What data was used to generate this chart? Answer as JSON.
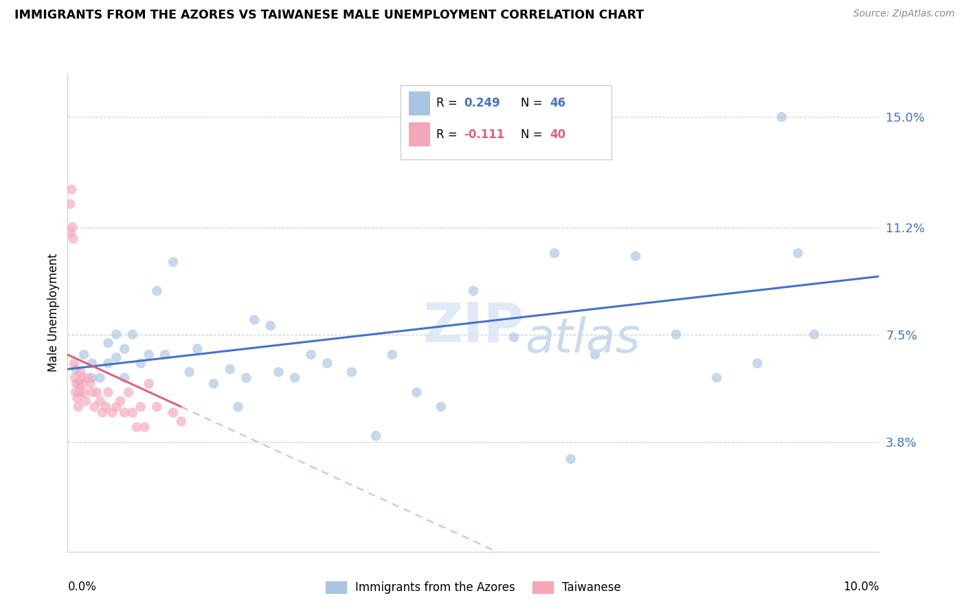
{
  "title": "IMMIGRANTS FROM THE AZORES VS TAIWANESE MALE UNEMPLOYMENT CORRELATION CHART",
  "source": "Source: ZipAtlas.com",
  "ylabel": "Male Unemployment",
  "y_ticks": [
    0.0,
    0.038,
    0.075,
    0.112,
    0.15
  ],
  "y_tick_labels": [
    "",
    "3.8%",
    "7.5%",
    "11.2%",
    "15.0%"
  ],
  "x_range": [
    0.0,
    0.1
  ],
  "y_range": [
    0.0,
    0.165
  ],
  "color_azores": "#a8c4e0",
  "color_taiwanese": "#f4a7b9",
  "color_azores_line": "#4472c4",
  "color_taiwanese_line": "#e06080",
  "color_taiwanese_line_dashed": "#f0b0c8",
  "azores_x": [
    0.001,
    0.002,
    0.003,
    0.003,
    0.004,
    0.005,
    0.005,
    0.006,
    0.006,
    0.007,
    0.007,
    0.008,
    0.009,
    0.01,
    0.011,
    0.012,
    0.013,
    0.015,
    0.016,
    0.018,
    0.02,
    0.021,
    0.022,
    0.023,
    0.025,
    0.026,
    0.028,
    0.03,
    0.032,
    0.035,
    0.038,
    0.04,
    0.043,
    0.046,
    0.05,
    0.055,
    0.06,
    0.062,
    0.065,
    0.07,
    0.075,
    0.08,
    0.085,
    0.088,
    0.09,
    0.092
  ],
  "azores_y": [
    0.063,
    0.068,
    0.06,
    0.065,
    0.06,
    0.072,
    0.065,
    0.067,
    0.075,
    0.07,
    0.06,
    0.075,
    0.065,
    0.068,
    0.09,
    0.068,
    0.1,
    0.062,
    0.07,
    0.058,
    0.063,
    0.05,
    0.06,
    0.08,
    0.078,
    0.062,
    0.06,
    0.068,
    0.065,
    0.062,
    0.04,
    0.068,
    0.055,
    0.05,
    0.09,
    0.074,
    0.103,
    0.032,
    0.068,
    0.102,
    0.075,
    0.06,
    0.065,
    0.15,
    0.103,
    0.075
  ],
  "taiwanese_x": [
    0.0003,
    0.0004,
    0.0005,
    0.0006,
    0.0007,
    0.0008,
    0.0009,
    0.001,
    0.0011,
    0.0012,
    0.0013,
    0.0014,
    0.0015,
    0.0016,
    0.0017,
    0.0018,
    0.002,
    0.0022,
    0.0025,
    0.0028,
    0.003,
    0.0033,
    0.0036,
    0.004,
    0.0043,
    0.0047,
    0.005,
    0.0055,
    0.006,
    0.0065,
    0.007,
    0.0075,
    0.008,
    0.0085,
    0.009,
    0.0095,
    0.01,
    0.011,
    0.013,
    0.014
  ],
  "taiwanese_y": [
    0.12,
    0.11,
    0.125,
    0.112,
    0.108,
    0.065,
    0.06,
    0.055,
    0.058,
    0.053,
    0.05,
    0.058,
    0.055,
    0.062,
    0.06,
    0.058,
    0.055,
    0.052,
    0.06,
    0.058,
    0.055,
    0.05,
    0.055,
    0.052,
    0.048,
    0.05,
    0.055,
    0.048,
    0.05,
    0.052,
    0.048,
    0.055,
    0.048,
    0.043,
    0.05,
    0.043,
    0.058,
    0.05,
    0.048,
    0.045
  ],
  "marker_size": 110,
  "marker_alpha": 0.65
}
